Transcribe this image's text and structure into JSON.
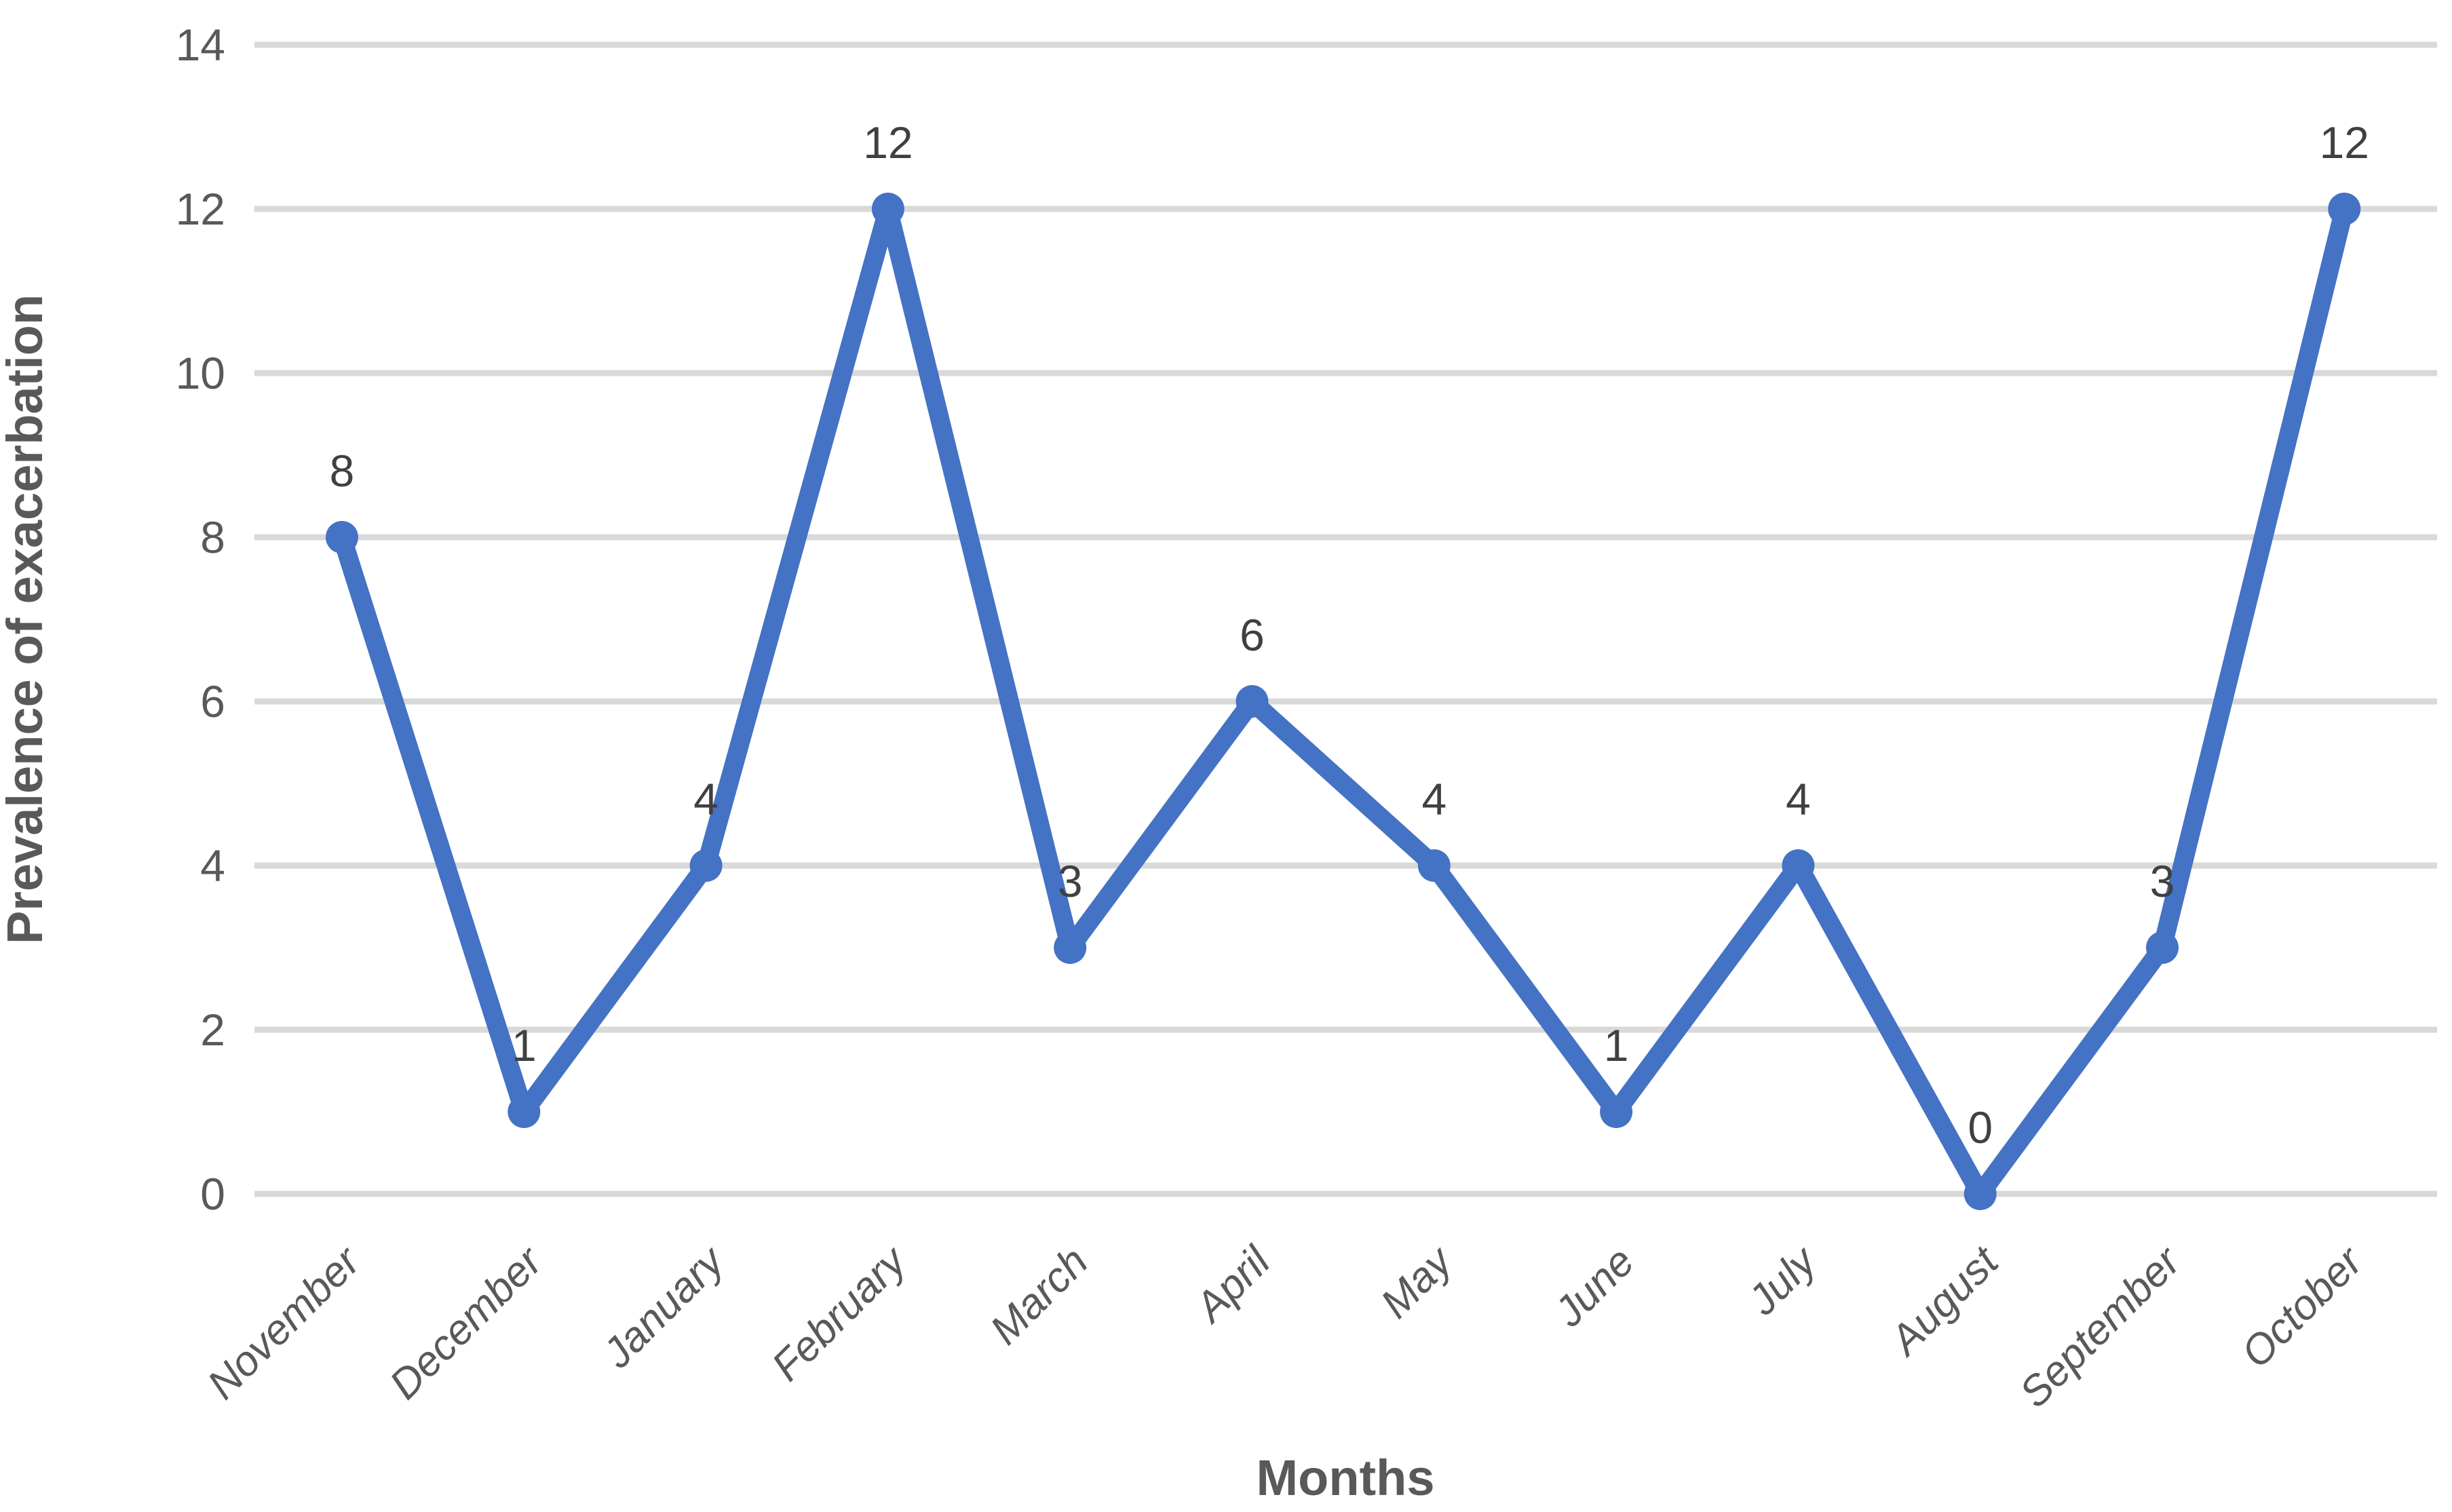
{
  "chart_data": {
    "type": "line",
    "title": "",
    "xlabel": "Months",
    "ylabel": "Prevalence of exacerbation",
    "categories": [
      "November",
      "December",
      "January",
      "February",
      "March",
      "April",
      "May",
      "June",
      "July",
      "August",
      "September",
      "October"
    ],
    "series": [
      {
        "name": "Prevalence of exacerbation",
        "values": [
          8,
          1,
          4,
          12,
          3,
          6,
          4,
          1,
          4,
          0,
          3,
          12
        ],
        "marker": "circle",
        "show_data_labels": true
      }
    ],
    "data_labels": [
      "8",
      "1",
      "4",
      "12",
      "3",
      "6",
      "4",
      "1",
      "4",
      "0",
      "3",
      "12"
    ],
    "yticks": [
      "0",
      "2",
      "4",
      "6",
      "8",
      "10",
      "12",
      "14"
    ],
    "ylim": [
      0,
      14
    ],
    "grid": "horizontal",
    "legend_position": "none",
    "colors": {
      "line": "#4472C4",
      "marker": "#4472C4",
      "gridline": "#D9D9D9",
      "tick_label": "#595959",
      "data_label": "#404040",
      "axis_title": "#595959",
      "background": "#FFFFFF"
    }
  }
}
